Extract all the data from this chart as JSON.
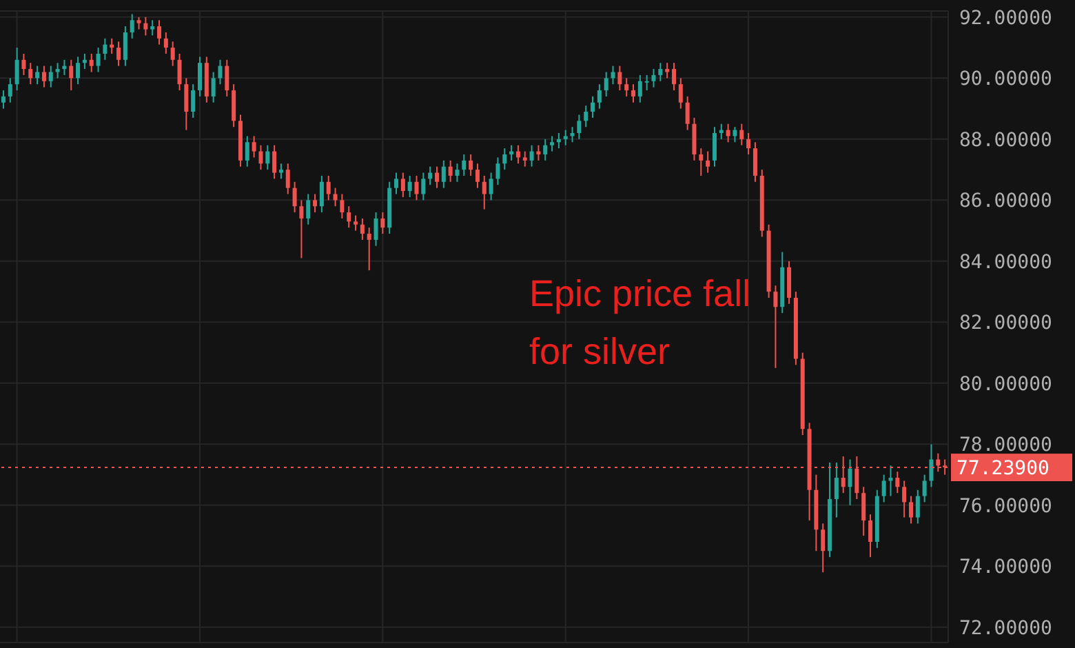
{
  "chart_data": {
    "type": "candlestick",
    "categories": [
      null,
      null,
      null,
      null,
      null,
      null,
      null,
      null,
      null,
      null,
      null,
      null,
      null,
      null,
      null,
      null,
      null,
      null,
      null,
      null,
      null,
      null,
      null,
      null,
      null,
      null,
      null,
      null,
      null,
      null,
      null,
      null,
      null,
      null,
      null,
      null,
      null,
      null,
      null,
      null,
      null,
      null,
      null,
      null,
      null,
      null,
      null,
      null,
      null,
      null,
      null,
      null,
      null,
      null,
      null,
      null,
      null,
      null,
      null,
      null,
      null,
      null,
      null,
      null,
      null,
      null,
      null,
      null,
      null,
      null,
      null,
      null,
      null,
      null,
      null,
      null,
      null,
      null,
      null,
      null,
      null,
      null,
      null,
      null,
      null,
      null,
      null,
      null,
      null,
      null,
      null,
      null,
      null,
      null,
      null,
      null,
      null,
      null,
      null,
      null,
      null,
      null,
      null,
      null,
      null,
      null,
      null,
      null,
      null,
      null,
      null,
      null,
      null,
      null,
      null,
      null,
      null,
      null,
      null,
      null,
      null,
      null,
      null,
      null,
      null,
      null,
      null,
      null,
      null,
      null,
      null,
      null,
      null,
      null,
      null,
      null,
      null,
      null,
      null,
      null
    ],
    "ohlc": [
      [
        89.2,
        89.6,
        89.0,
        89.4
      ],
      [
        89.4,
        90.0,
        89.2,
        89.8
      ],
      [
        89.8,
        91.0,
        89.6,
        90.6
      ],
      [
        90.6,
        90.8,
        90.1,
        90.3
      ],
      [
        90.3,
        90.5,
        89.8,
        90.0
      ],
      [
        90.0,
        90.4,
        89.8,
        90.2
      ],
      [
        90.2,
        90.4,
        89.7,
        89.9
      ],
      [
        89.9,
        90.4,
        89.7,
        90.2
      ],
      [
        90.2,
        90.5,
        90.0,
        90.3
      ],
      [
        90.3,
        90.6,
        90.1,
        90.4
      ],
      [
        90.4,
        90.6,
        89.6,
        90.0
      ],
      [
        90.0,
        90.7,
        89.8,
        90.5
      ],
      [
        90.5,
        90.8,
        90.3,
        90.6
      ],
      [
        90.6,
        90.8,
        90.2,
        90.4
      ],
      [
        90.4,
        91.0,
        90.2,
        90.8
      ],
      [
        90.8,
        91.3,
        90.6,
        91.1
      ],
      [
        91.1,
        91.3,
        90.8,
        91.0
      ],
      [
        91.0,
        91.2,
        90.4,
        90.6
      ],
      [
        90.6,
        91.7,
        90.4,
        91.5
      ],
      [
        91.5,
        92.1,
        91.3,
        91.9
      ],
      [
        91.9,
        92.0,
        91.6,
        91.8
      ],
      [
        91.8,
        92.0,
        91.4,
        91.6
      ],
      [
        91.6,
        91.9,
        91.4,
        91.7
      ],
      [
        91.7,
        91.9,
        91.1,
        91.3
      ],
      [
        91.3,
        91.5,
        90.8,
        91.0
      ],
      [
        91.0,
        91.2,
        90.4,
        90.6
      ],
      [
        90.6,
        90.8,
        89.6,
        89.8
      ],
      [
        89.8,
        90.0,
        88.3,
        88.9
      ],
      [
        88.9,
        89.8,
        88.7,
        89.6
      ],
      [
        89.6,
        90.7,
        89.4,
        90.5
      ],
      [
        90.5,
        90.7,
        89.2,
        89.4
      ],
      [
        89.4,
        90.2,
        89.2,
        90.0
      ],
      [
        90.0,
        90.6,
        89.8,
        90.4
      ],
      [
        90.4,
        90.6,
        89.4,
        89.6
      ],
      [
        89.6,
        89.8,
        88.4,
        88.6
      ],
      [
        88.6,
        88.8,
        87.1,
        87.3
      ],
      [
        87.3,
        88.1,
        87.1,
        87.9
      ],
      [
        87.9,
        88.1,
        87.4,
        87.6
      ],
      [
        87.6,
        87.8,
        87.0,
        87.2
      ],
      [
        87.2,
        87.8,
        87.0,
        87.6
      ],
      [
        87.6,
        87.8,
        86.7,
        86.9
      ],
      [
        86.9,
        87.2,
        86.7,
        87.0
      ],
      [
        87.0,
        87.2,
        86.2,
        86.4
      ],
      [
        86.4,
        86.6,
        85.6,
        85.8
      ],
      [
        85.8,
        86.0,
        84.1,
        85.4
      ],
      [
        85.4,
        86.2,
        85.2,
        86.0
      ],
      [
        86.0,
        86.2,
        85.6,
        85.8
      ],
      [
        85.8,
        86.8,
        85.6,
        86.6
      ],
      [
        86.6,
        86.8,
        86.0,
        86.2
      ],
      [
        86.2,
        86.4,
        85.8,
        86.0
      ],
      [
        86.0,
        86.2,
        85.4,
        85.6
      ],
      [
        85.6,
        85.8,
        85.1,
        85.3
      ],
      [
        85.3,
        85.5,
        85.0,
        85.2
      ],
      [
        85.2,
        85.4,
        84.7,
        84.9
      ],
      [
        84.9,
        85.1,
        83.7,
        84.7
      ],
      [
        84.7,
        85.6,
        84.5,
        85.4
      ],
      [
        85.4,
        85.6,
        84.9,
        85.1
      ],
      [
        85.1,
        86.6,
        84.9,
        86.4
      ],
      [
        86.4,
        86.9,
        86.2,
        86.7
      ],
      [
        86.7,
        86.9,
        86.1,
        86.3
      ],
      [
        86.3,
        86.8,
        86.1,
        86.6
      ],
      [
        86.6,
        86.8,
        86.0,
        86.2
      ],
      [
        86.2,
        86.9,
        86.0,
        86.7
      ],
      [
        86.7,
        87.1,
        86.5,
        86.9
      ],
      [
        86.9,
        87.1,
        86.4,
        86.6
      ],
      [
        86.6,
        87.3,
        86.4,
        87.1
      ],
      [
        87.1,
        87.3,
        86.6,
        86.8
      ],
      [
        86.8,
        87.2,
        86.6,
        87.0
      ],
      [
        87.0,
        87.5,
        86.8,
        87.3
      ],
      [
        87.3,
        87.5,
        86.8,
        87.0
      ],
      [
        87.0,
        87.2,
        86.4,
        86.6
      ],
      [
        86.6,
        86.8,
        85.7,
        86.2
      ],
      [
        86.2,
        86.9,
        86.0,
        86.7
      ],
      [
        86.7,
        87.4,
        86.5,
        87.2
      ],
      [
        87.2,
        87.7,
        87.0,
        87.5
      ],
      [
        87.5,
        87.8,
        87.3,
        87.6
      ],
      [
        87.6,
        87.8,
        87.2,
        87.4
      ],
      [
        87.4,
        87.6,
        87.1,
        87.3
      ],
      [
        87.3,
        87.8,
        87.1,
        87.6
      ],
      [
        87.6,
        87.8,
        87.3,
        87.5
      ],
      [
        87.5,
        88.0,
        87.3,
        87.8
      ],
      [
        87.8,
        88.1,
        87.6,
        87.9
      ],
      [
        87.9,
        88.2,
        87.7,
        88.0
      ],
      [
        88.0,
        88.3,
        87.8,
        88.1
      ],
      [
        88.1,
        88.4,
        87.9,
        88.2
      ],
      [
        88.2,
        88.8,
        88.0,
        88.6
      ],
      [
        88.6,
        89.1,
        88.4,
        88.9
      ],
      [
        88.9,
        89.4,
        88.7,
        89.2
      ],
      [
        89.2,
        89.8,
        89.0,
        89.6
      ],
      [
        89.6,
        90.2,
        89.4,
        90.0
      ],
      [
        90.0,
        90.4,
        89.8,
        90.2
      ],
      [
        90.2,
        90.4,
        89.6,
        89.8
      ],
      [
        89.8,
        90.0,
        89.4,
        89.6
      ],
      [
        89.6,
        89.8,
        89.2,
        89.4
      ],
      [
        89.4,
        90.1,
        89.2,
        89.9
      ],
      [
        89.9,
        90.1,
        89.6,
        89.9
      ],
      [
        89.9,
        90.3,
        89.7,
        90.1
      ],
      [
        90.1,
        90.5,
        89.9,
        90.3
      ],
      [
        90.3,
        90.5,
        90.0,
        90.2
      ],
      [
        90.3,
        90.5,
        89.6,
        89.8
      ],
      [
        89.8,
        90.0,
        89.0,
        89.2
      ],
      [
        89.2,
        89.4,
        88.3,
        88.5
      ],
      [
        88.5,
        88.7,
        87.3,
        87.5
      ],
      [
        87.5,
        87.7,
        86.8,
        87.3
      ],
      [
        87.3,
        87.6,
        86.9,
        87.1
      ],
      [
        87.3,
        88.4,
        87.1,
        88.2
      ],
      [
        88.2,
        88.5,
        88.0,
        88.3
      ],
      [
        88.3,
        88.5,
        87.9,
        88.1
      ],
      [
        88.1,
        88.4,
        87.9,
        88.3
      ],
      [
        88.3,
        88.5,
        87.8,
        88.0
      ],
      [
        88.0,
        88.2,
        87.5,
        87.7
      ],
      [
        87.7,
        87.9,
        86.6,
        86.8
      ],
      [
        86.8,
        87.0,
        84.8,
        85.0
      ],
      [
        85.0,
        85.2,
        82.8,
        83.0
      ],
      [
        83.0,
        83.2,
        80.5,
        82.5
      ],
      [
        82.5,
        84.3,
        82.3,
        83.8
      ],
      [
        83.8,
        84.0,
        82.6,
        82.8
      ],
      [
        82.8,
        83.0,
        80.6,
        80.8
      ],
      [
        80.8,
        81.0,
        78.3,
        78.5
      ],
      [
        78.5,
        78.7,
        75.5,
        76.5
      ],
      [
        76.5,
        77.0,
        74.5,
        75.2
      ],
      [
        75.2,
        75.4,
        73.8,
        74.5
      ],
      [
        74.5,
        77.4,
        74.3,
        76.2
      ],
      [
        76.2,
        77.4,
        75.6,
        76.9
      ],
      [
        76.9,
        77.6,
        76.4,
        76.6
      ],
      [
        76.6,
        77.5,
        76.0,
        77.2
      ],
      [
        77.2,
        77.6,
        76.2,
        76.4
      ],
      [
        76.4,
        76.6,
        75.0,
        75.5
      ],
      [
        75.5,
        75.7,
        74.3,
        74.8
      ],
      [
        74.8,
        76.5,
        74.6,
        76.3
      ],
      [
        76.3,
        77.0,
        76.1,
        76.8
      ],
      [
        76.8,
        77.3,
        76.3,
        76.9
      ],
      [
        76.9,
        77.1,
        76.4,
        76.6
      ],
      [
        76.6,
        76.8,
        75.6,
        76.1
      ],
      [
        76.1,
        76.3,
        75.4,
        75.6
      ],
      [
        75.6,
        76.5,
        75.4,
        76.3
      ],
      [
        76.3,
        77.0,
        76.1,
        76.8
      ],
      [
        76.8,
        78.0,
        76.6,
        77.5
      ],
      [
        77.5,
        77.7,
        77.1,
        77.3
      ],
      [
        77.3,
        77.5,
        77.0,
        77.24
      ]
    ],
    "colors": [
      "#26a69a",
      "#26a69a",
      "#26a69a",
      "#ef5350",
      "#ef5350",
      "#26a69a",
      "#ef5350",
      "#26a69a",
      "#26a69a",
      "#26a69a",
      "#ef5350",
      "#26a69a",
      "#26a69a",
      "#ef5350",
      "#26a69a",
      "#26a69a",
      "#ef5350",
      "#ef5350",
      "#26a69a",
      "#26a69a",
      "#ef5350",
      "#ef5350",
      "#26a69a",
      "#ef5350",
      "#ef5350",
      "#ef5350",
      "#ef5350",
      "#ef5350",
      "#26a69a",
      "#26a69a",
      "#ef5350",
      "#26a69a",
      "#26a69a",
      "#ef5350",
      "#ef5350",
      "#ef5350",
      "#26a69a",
      "#ef5350",
      "#ef5350",
      "#26a69a",
      "#ef5350",
      "#26a69a",
      "#ef5350",
      "#ef5350",
      "#ef5350",
      "#26a69a",
      "#ef5350",
      "#26a69a",
      "#ef5350",
      "#ef5350",
      "#ef5350",
      "#ef5350",
      "#ef5350",
      "#ef5350",
      "#ef5350",
      "#26a69a",
      "#ef5350",
      "#26a69a",
      "#26a69a",
      "#ef5350",
      "#26a69a",
      "#ef5350",
      "#26a69a",
      "#26a69a",
      "#ef5350",
      "#26a69a",
      "#ef5350",
      "#26a69a",
      "#26a69a",
      "#ef5350",
      "#ef5350",
      "#ef5350",
      "#26a69a",
      "#26a69a",
      "#26a69a",
      "#26a69a",
      "#ef5350",
      "#ef5350",
      "#26a69a",
      "#ef5350",
      "#26a69a",
      "#26a69a",
      "#26a69a",
      "#26a69a",
      "#26a69a",
      "#26a69a",
      "#26a69a",
      "#26a69a",
      "#26a69a",
      "#26a69a",
      "#26a69a",
      "#ef5350",
      "#ef5350",
      "#ef5350",
      "#26a69a",
      "#26a69a",
      "#26a69a",
      "#26a69a",
      "#ef5350",
      "#ef5350",
      "#ef5350",
      "#ef5350",
      "#ef5350",
      "#ef5350",
      "#ef5350",
      "#26a69a",
      "#26a69a",
      "#ef5350",
      "#26a69a",
      "#ef5350",
      "#ef5350",
      "#ef5350",
      "#ef5350",
      "#ef5350",
      "#ef5350",
      "#26a69a",
      "#ef5350",
      "#ef5350",
      "#ef5350",
      "#ef5350",
      "#ef5350",
      "#ef5350",
      "#26a69a",
      "#26a69a",
      "#ef5350",
      "#26a69a",
      "#ef5350",
      "#ef5350",
      "#ef5350",
      "#26a69a",
      "#26a69a",
      "#26a69a",
      "#ef5350",
      "#ef5350",
      "#ef5350",
      "#26a69a",
      "#26a69a",
      "#26a69a",
      "#ef5350",
      "#ef5350"
    ],
    "ylim": [
      71.5,
      92.2
    ],
    "yticks": [
      {
        "value": 72,
        "label": "72.00000"
      },
      {
        "value": 74,
        "label": "74.00000"
      },
      {
        "value": 76,
        "label": "76.00000"
      },
      {
        "value": 78,
        "label": "78.00000"
      },
      {
        "value": 80,
        "label": "80.00000"
      },
      {
        "value": 82,
        "label": "82.00000"
      },
      {
        "value": 84,
        "label": "84.00000"
      },
      {
        "value": 86,
        "label": "86.00000"
      },
      {
        "value": 88,
        "label": "88.00000"
      },
      {
        "value": 90,
        "label": "90.00000"
      },
      {
        "value": 92,
        "label": "92.00000"
      }
    ],
    "ref_lines": [
      {
        "axis": "y",
        "value": 77.239,
        "label": "77.23900",
        "color": "#ef5350",
        "line_style": "dotted"
      }
    ],
    "annotations": [
      "Epic price fall for silver"
    ],
    "grid": true,
    "tick_labels": "y"
  }
}
